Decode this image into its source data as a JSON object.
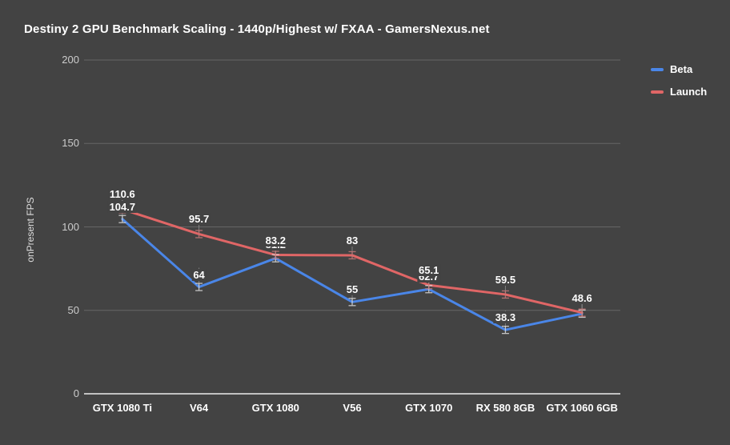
{
  "title": "Destiny 2 GPU Benchmark Scaling - 1440p/Highest w/ FXAA - GamersNexus.net",
  "colors": {
    "background": "#434343",
    "grid": "#666666",
    "baseline": "#ededed",
    "tick_text": "#cccccc",
    "label_text": "#ffffff",
    "leader_line": "#8f8f8f",
    "beta_whisker": "#d9d9d9",
    "launch_whisker": "#c47878",
    "beta": "#4a86e8",
    "launch": "#e06666"
  },
  "legend": {
    "position": "right",
    "items": [
      {
        "label": "Beta",
        "color_key": "beta"
      },
      {
        "label": "Launch",
        "color_key": "launch"
      }
    ]
  },
  "chart_data": {
    "type": "line",
    "title": "Destiny 2 GPU Benchmark Scaling - 1440p/Highest w/ FXAA - GamersNexus.net",
    "xlabel": "",
    "ylabel": "onPresent FPS",
    "ylim": [
      0,
      200
    ],
    "yticks": [
      0,
      50,
      100,
      150,
      200
    ],
    "grid": true,
    "legend_position": "right",
    "error_bars": true,
    "categories": [
      "GTX 1080 Ti",
      "V64",
      "GTX 1080",
      "V56",
      "GTX 1070",
      "RX 580 8GB",
      "GTX 1060 6GB"
    ],
    "series": [
      {
        "name": "Beta",
        "color_key": "beta",
        "values": [
          104.7,
          64,
          81.2,
          55,
          62.7,
          38.3,
          48
        ],
        "labels": [
          "104.7",
          "64",
          "81.2",
          "55",
          "62.7",
          "38.3",
          "48"
        ]
      },
      {
        "name": "Launch",
        "color_key": "launch",
        "values": [
          110.6,
          95.7,
          83.2,
          83,
          65.1,
          59.5,
          48.6
        ],
        "labels": [
          "110.6",
          "95.7",
          "83.2",
          "83",
          "65.1",
          "59.5",
          "48.6"
        ]
      }
    ]
  }
}
